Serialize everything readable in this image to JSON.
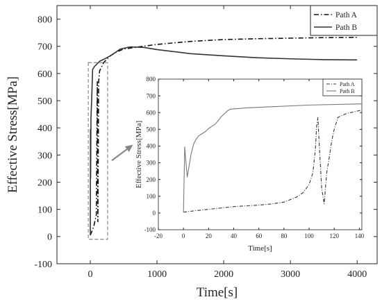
{
  "chart_data": [
    {
      "type": "line",
      "xlabel": "Time[s]",
      "ylabel": "Effective Stress[MPa]",
      "xlim": [
        -500,
        4300
      ],
      "ylim": [
        -100,
        850
      ],
      "x_ticks": [
        0,
        1000,
        2000,
        3000,
        4000
      ],
      "y_ticks": [
        -100,
        0,
        100,
        200,
        300,
        400,
        500,
        600,
        700,
        800
      ],
      "legend_position": "top-right",
      "colors": {
        "path_a": "#111111",
        "path_b": "#333333",
        "highlight_box": "#888888",
        "arrow": "#888888"
      },
      "highlight_box": {
        "x_range": [
          -30,
          260
        ],
        "y_range": [
          -10,
          640
        ]
      },
      "series": [
        {
          "name": "Path A",
          "style": "dash-dot",
          "x": [
            0,
            50,
            90,
            105,
            110,
            113,
            120,
            125,
            140,
            200,
            300,
            400,
            500,
            700,
            1000,
            1500,
            2000,
            2500,
            3000,
            3500,
            4000
          ],
          "y": [
            5,
            35,
            80,
            570,
            150,
            55,
            330,
            570,
            610,
            640,
            665,
            680,
            690,
            697,
            707,
            718,
            725,
            728,
            730,
            732,
            733
          ]
        },
        {
          "name": "Path B",
          "style": "solid",
          "x": [
            0,
            2,
            5,
            10,
            20,
            35,
            60,
            100,
            140,
            200,
            300,
            450,
            600,
            800,
            1000,
            1500,
            2000,
            2500,
            3000,
            3500,
            4000
          ],
          "y": [
            5,
            395,
            215,
            440,
            500,
            615,
            625,
            635,
            645,
            652,
            665,
            690,
            698,
            696,
            688,
            673,
            665,
            658,
            654,
            651,
            650
          ]
        }
      ]
    },
    {
      "type": "line",
      "xlabel": "Time[s]",
      "ylabel": "Effective Stress[MPa]",
      "xlim": [
        -20,
        142
      ],
      "ylim": [
        -100,
        800
      ],
      "x_ticks": [
        -20,
        0,
        20,
        40,
        60,
        80,
        100,
        120,
        140
      ],
      "y_ticks": [
        -100,
        0,
        100,
        200,
        300,
        400,
        500,
        600,
        700,
        800
      ],
      "legend_position": "top-right",
      "colors": {
        "path_a": "#333333",
        "path_b": "#777777"
      },
      "series": [
        {
          "name": "Path A",
          "style": "dash-dot",
          "x": [
            0,
            10,
            20,
            30,
            40,
            50,
            60,
            70,
            80,
            90,
            95,
            100,
            103,
            105,
            106,
            107,
            108,
            110,
            112,
            114,
            116,
            118,
            120,
            123,
            130,
            142
          ],
          "y": [
            5,
            14,
            22,
            30,
            38,
            43,
            47,
            54,
            65,
            95,
            120,
            170,
            240,
            380,
            520,
            570,
            420,
            150,
            55,
            240,
            330,
            430,
            500,
            572,
            595,
            615
          ]
        },
        {
          "name": "Path B",
          "style": "solid",
          "x": [
            0,
            1,
            2,
            3,
            4,
            6,
            8,
            10,
            12,
            15,
            18,
            20,
            22,
            25,
            28,
            30,
            35,
            37,
            50,
            70,
            100,
            142
          ],
          "y": [
            5,
            395,
            300,
            215,
            260,
            350,
            410,
            440,
            460,
            475,
            490,
            505,
            515,
            530,
            555,
            575,
            610,
            620,
            628,
            635,
            645,
            652
          ]
        }
      ]
    }
  ]
}
